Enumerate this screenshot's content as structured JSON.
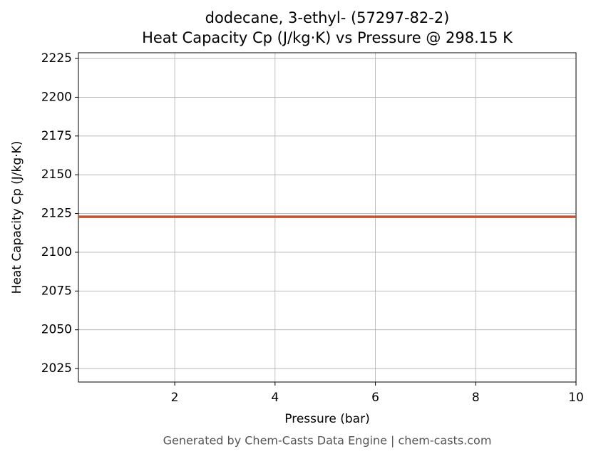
{
  "chart_data": {
    "type": "line",
    "title": "dodecane, 3-ethyl- (57297-82-2)",
    "subtitle": "Heat Capacity Cp (J/kg·K) vs Pressure @ 298.15 K",
    "x_label": "Pressure (bar)",
    "y_label": "Heat Capacity Cp (J/kg·K)",
    "footer": "Generated by Chem-Casts Data Engine | chem-casts.com",
    "x": [
      0.08,
      10
    ],
    "series": [
      {
        "name": "Cp",
        "color": "#c8522a",
        "values": [
          2122.9,
          2122.9
        ]
      }
    ],
    "xlim": [
      0.08,
      10
    ],
    "xticks": [
      2,
      4,
      6,
      8,
      10
    ],
    "ylim": [
      2016.3,
      2228.7
    ],
    "yticks": [
      2025,
      2050,
      2075,
      2100,
      2125,
      2150,
      2175,
      2200,
      2225
    ],
    "grid": true
  }
}
